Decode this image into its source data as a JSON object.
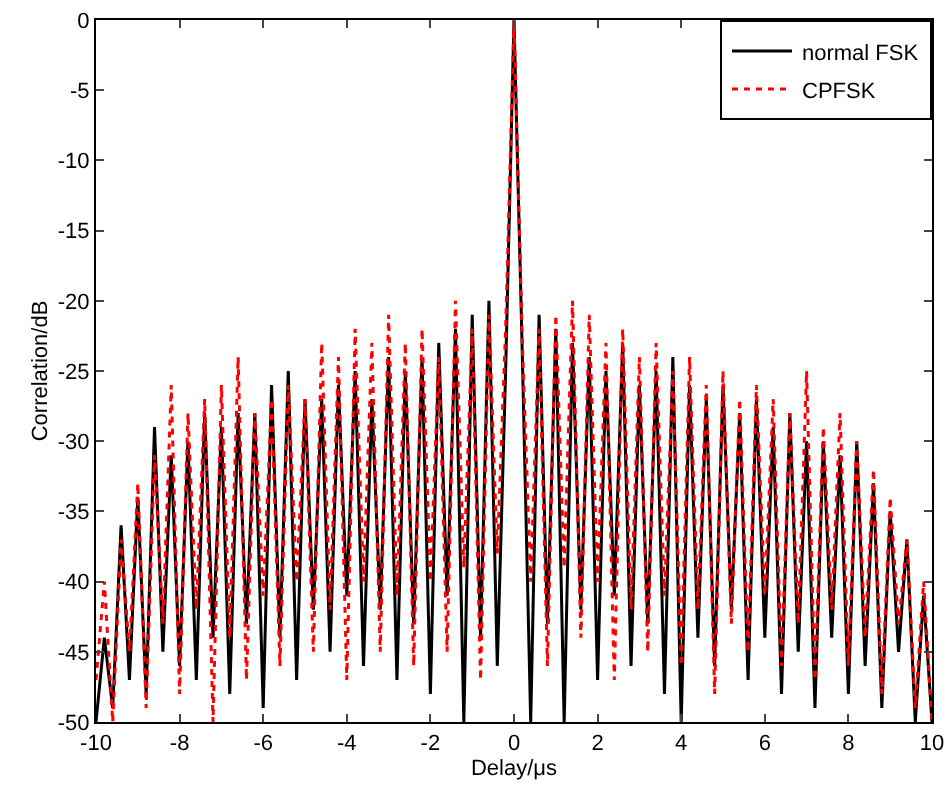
{
  "chart_data": {
    "type": "line",
    "xlabel": "Delay/μs",
    "ylabel": "Correlation/dB",
    "x": [
      -10,
      -9.8,
      -9.6,
      -9.4,
      -9.2,
      -9,
      -8.8,
      -8.6,
      -8.4,
      -8.2,
      -8,
      -7.8,
      -7.6,
      -7.4,
      -7.2,
      -7,
      -6.8,
      -6.6,
      -6.4,
      -6.2,
      -6,
      -5.8,
      -5.6,
      -5.4,
      -5.2,
      -5,
      -4.8,
      -4.6,
      -4.4,
      -4.2,
      -4,
      -3.8,
      -3.6,
      -3.4,
      -3.2,
      -3,
      -2.8,
      -2.6,
      -2.4,
      -2.2,
      -2,
      -1.8,
      -1.6,
      -1.4,
      -1.2,
      -1,
      -0.8,
      -0.6,
      -0.4,
      -0.2,
      0,
      0.2,
      0.4,
      0.6,
      0.8,
      1,
      1.2,
      1.4,
      1.6,
      1.8,
      2,
      2.2,
      2.4,
      2.6,
      2.8,
      3,
      3.2,
      3.4,
      3.6,
      3.8,
      4,
      4.2,
      4.4,
      4.6,
      4.8,
      5,
      5.2,
      5.4,
      5.6,
      5.8,
      6,
      6.2,
      6.4,
      6.6,
      6.8,
      7,
      7.2,
      7.4,
      7.6,
      7.8,
      8,
      8.2,
      8.4,
      8.6,
      8.8,
      9,
      9.2,
      9.4,
      9.6,
      9.8,
      10
    ],
    "series": [
      {
        "name": "normal FSK",
        "color": "#000000",
        "line_style": "solid",
        "values": [
          -50,
          -44,
          -49,
          -36,
          -47,
          -34,
          -48,
          -29,
          -45,
          -31,
          -46,
          -30,
          -47,
          -28,
          -44,
          -29,
          -48,
          -28,
          -43,
          -28,
          -49,
          -26,
          -44,
          -25,
          -47,
          -27,
          -42,
          -27,
          -45,
          -26,
          -41,
          -25,
          -46,
          -27,
          -42,
          -24,
          -47,
          -25,
          -43,
          -24,
          -48,
          -23,
          -41,
          -22,
          -50,
          -21,
          -44,
          -20,
          -46,
          -25,
          0,
          -24,
          -50,
          -21,
          -43,
          -22,
          -50,
          -23,
          -42,
          -24,
          -47,
          -25,
          -41,
          -23,
          -46,
          -26,
          -43,
          -25,
          -48,
          -24,
          -50,
          -26,
          -44,
          -27,
          -46,
          -26,
          -42,
          -28,
          -47,
          -27,
          -44,
          -29,
          -48,
          -28,
          -45,
          -30,
          -49,
          -30,
          -44,
          -31,
          -48,
          -30,
          -46,
          -33,
          -49,
          -35,
          -45,
          -37,
          -50,
          -41,
          -50
        ]
      },
      {
        "name": "CPFSK",
        "color": "#ff0000",
        "line_style": "dotted",
        "values": [
          -47,
          -40,
          -50,
          -37,
          -45,
          -33,
          -49,
          -31,
          -43,
          -26,
          -48,
          -28,
          -42,
          -27,
          -50,
          -26,
          -44,
          -24,
          -47,
          -28,
          -41,
          -27,
          -46,
          -26,
          -40,
          -27,
          -45,
          -23,
          -42,
          -24,
          -47,
          -22,
          -40,
          -23,
          -45,
          -21,
          -41,
          -23,
          -46,
          -22,
          -40,
          -24,
          -45,
          -20,
          -39,
          -22,
          -47,
          -21,
          -38,
          -22,
          0,
          -23,
          -40,
          -22,
          -46,
          -21,
          -39,
          -20,
          -44,
          -21,
          -40,
          -23,
          -47,
          -22,
          -42,
          -24,
          -45,
          -23,
          -41,
          -25,
          -46,
          -24,
          -42,
          -26,
          -48,
          -25,
          -43,
          -27,
          -45,
          -26,
          -41,
          -27,
          -46,
          -28,
          -43,
          -25,
          -47,
          -29,
          -42,
          -28,
          -46,
          -30,
          -44,
          -32,
          -48,
          -34,
          -43,
          -37,
          -49,
          -40,
          -50
        ]
      }
    ],
    "xlim": [
      -10,
      10
    ],
    "xticks": [
      -10,
      -8,
      -6,
      -4,
      -2,
      0,
      2,
      4,
      6,
      8,
      10
    ],
    "ylim": [
      -50,
      0
    ],
    "yticks": [
      -50,
      -45,
      -40,
      -35,
      -30,
      -25,
      -20,
      -15,
      -10,
      -5,
      0
    ],
    "grid": false,
    "legend": "top right"
  }
}
